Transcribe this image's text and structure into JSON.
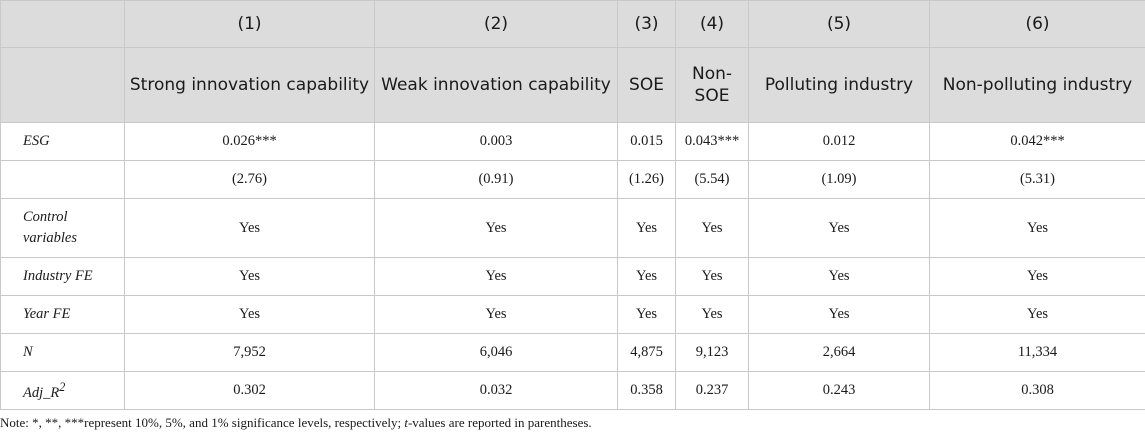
{
  "header": {
    "nums": [
      "(1)",
      "(2)",
      "(3)",
      "(4)",
      "(5)",
      "(6)"
    ],
    "names": [
      "Strong innovation capability",
      "Weak innovation capability",
      "SOE",
      "Non-SOE",
      "Polluting industry",
      "Non-polluting industry"
    ]
  },
  "rows": {
    "esg": {
      "label": "ESG",
      "values": [
        "0.026***",
        "0.003",
        "0.015",
        "0.043***",
        "0.012",
        "0.042***"
      ]
    },
    "tvals": {
      "label": "",
      "values": [
        "(2.76)",
        "(0.91)",
        "(1.26)",
        "(5.54)",
        "(1.09)",
        "(5.31)"
      ]
    },
    "controls": {
      "label": "Control variables",
      "values": [
        "Yes",
        "Yes",
        "Yes",
        "Yes",
        "Yes",
        "Yes"
      ]
    },
    "industry_fe": {
      "label": "Industry FE",
      "values": [
        "Yes",
        "Yes",
        "Yes",
        "Yes",
        "Yes",
        "Yes"
      ]
    },
    "year_fe": {
      "label": "Year FE",
      "values": [
        "Yes",
        "Yes",
        "Yes",
        "Yes",
        "Yes",
        "Yes"
      ]
    },
    "n": {
      "label": "N",
      "values": [
        "7,952",
        "6,046",
        "4,875",
        "9,123",
        "2,664",
        "11,334"
      ]
    },
    "adj_r2": {
      "label_base": "Adj_R",
      "label_sup": "2",
      "values": [
        "0.302",
        "0.032",
        "0.358",
        "0.237",
        "0.243",
        "0.308"
      ]
    }
  },
  "note": {
    "before": "Note: *, **, ***represent 10%, 5%, and 1% significance levels, respectively; ",
    "italic": "t",
    "after": "-values are reported in parentheses."
  }
}
